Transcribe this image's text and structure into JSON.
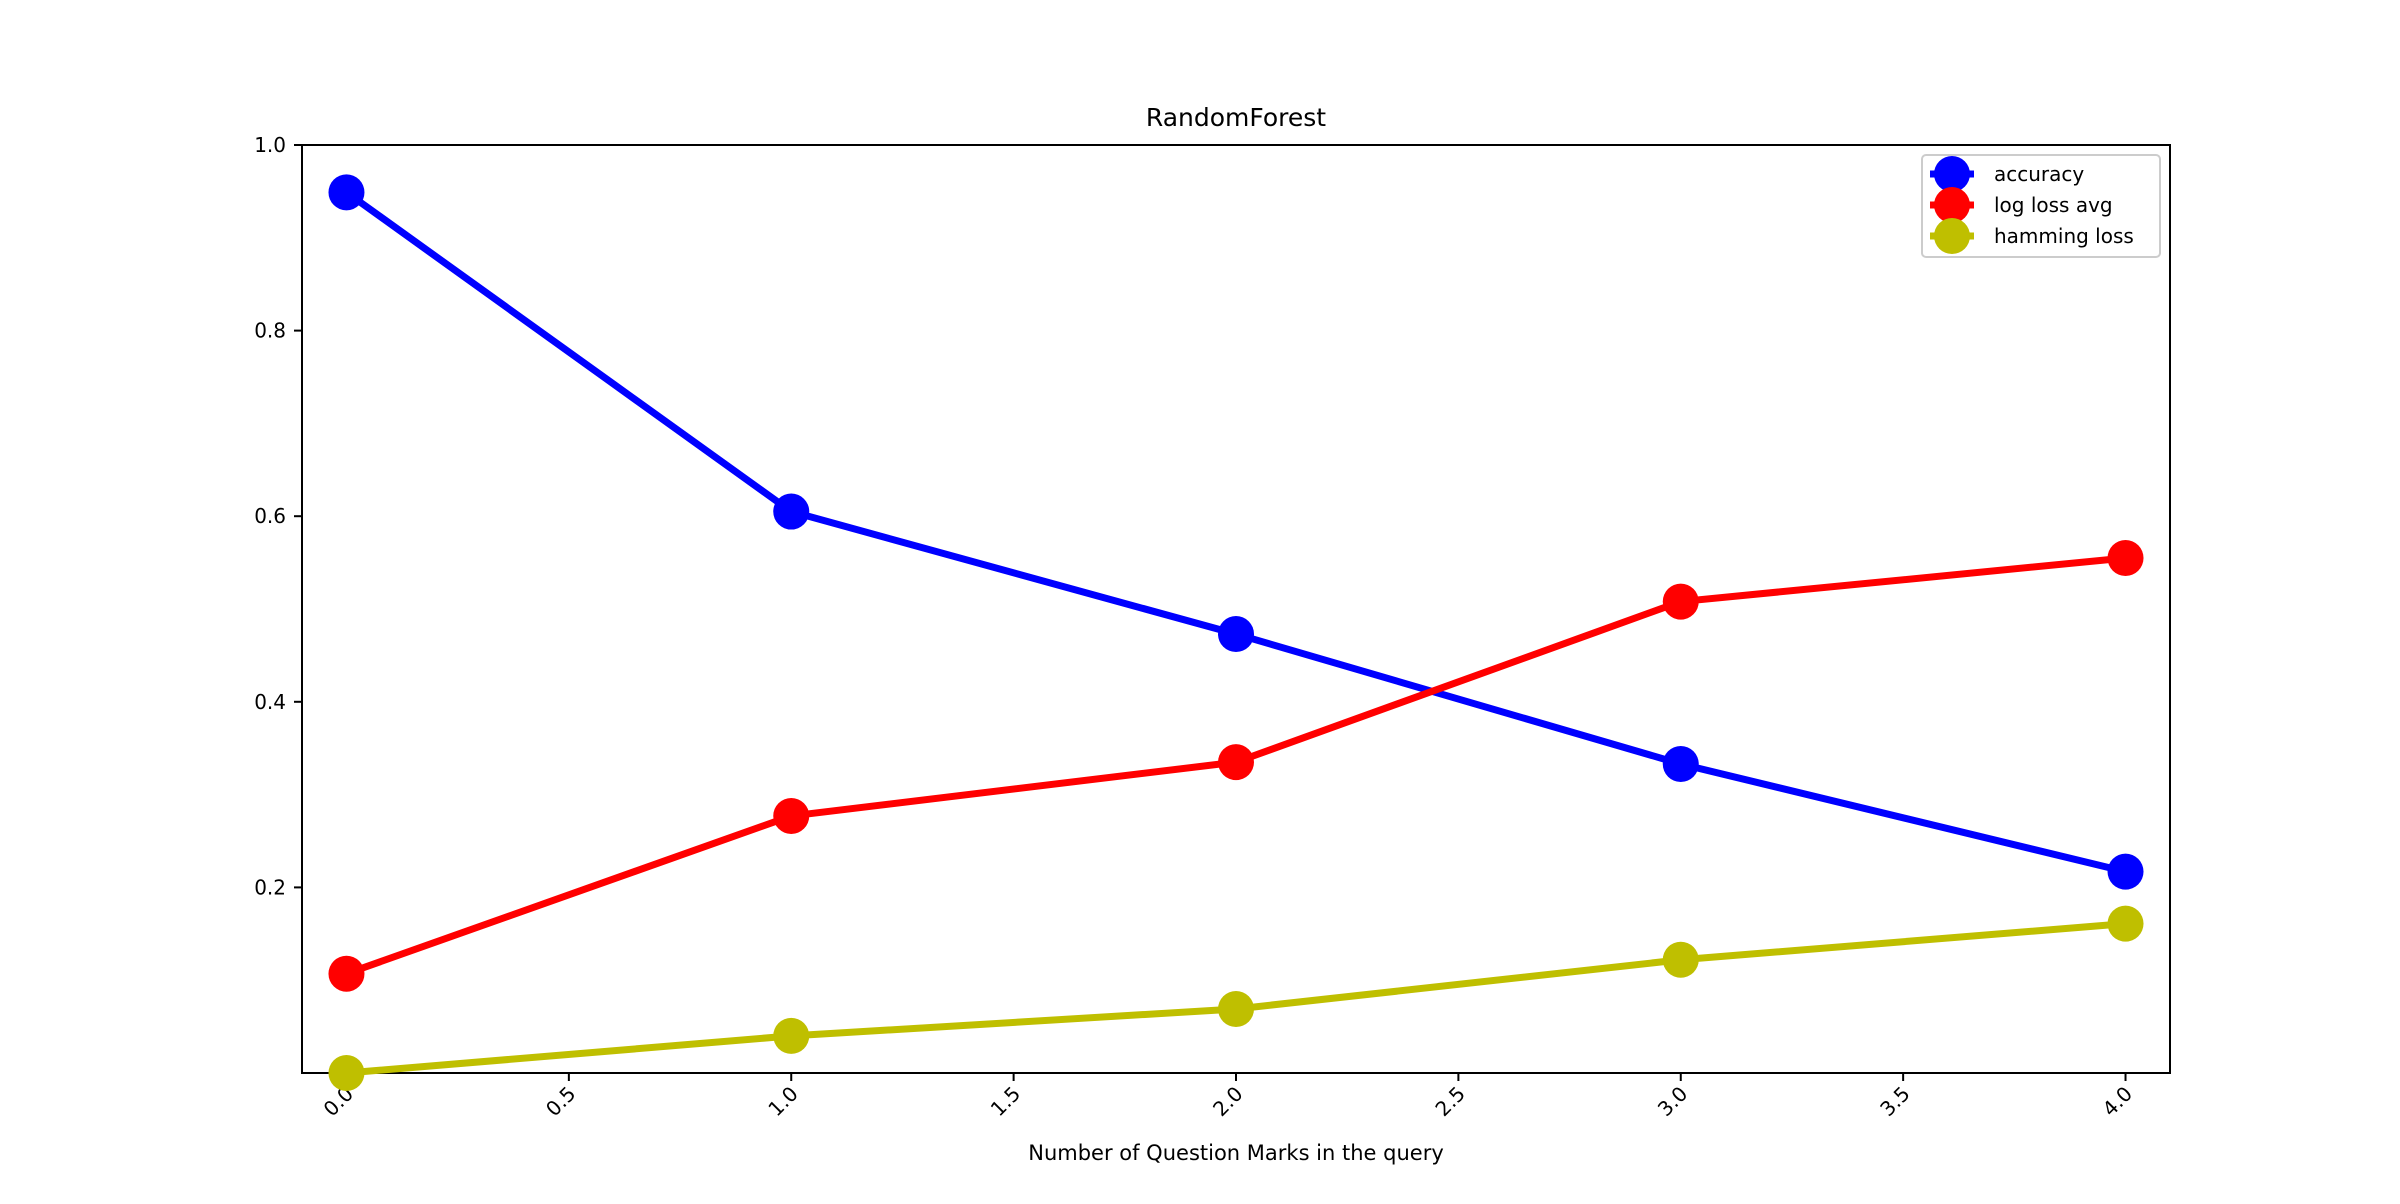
{
  "chart_data": {
    "type": "line",
    "title": "RandomForest",
    "xlabel": "Number of Question Marks in the query",
    "ylabel": "",
    "xlim": [
      -0.1,
      4.1
    ],
    "ylim": [
      0.0,
      1.0
    ],
    "x_ticks": [
      "0.0",
      "0.5",
      "1.0",
      "1.5",
      "2.0",
      "2.5",
      "3.0",
      "3.5",
      "4.0"
    ],
    "y_ticks": [
      "0.2",
      "0.4",
      "0.6",
      "0.8",
      "1.0"
    ],
    "x": [
      0,
      1,
      2,
      3,
      4
    ],
    "grid": false,
    "legend_position": "top-right",
    "series": [
      {
        "name": "accuracy",
        "color": "#0000ff",
        "values": [
          0.949,
          0.605,
          0.473,
          0.333,
          0.217
        ]
      },
      {
        "name": "log loss avg",
        "color": "#ff0000",
        "values": [
          0.107,
          0.277,
          0.335,
          0.508,
          0.555
        ]
      },
      {
        "name": "hamming loss",
        "color": "#bfbf00",
        "values": [
          0.0,
          0.04,
          0.069,
          0.122,
          0.161
        ]
      }
    ]
  }
}
